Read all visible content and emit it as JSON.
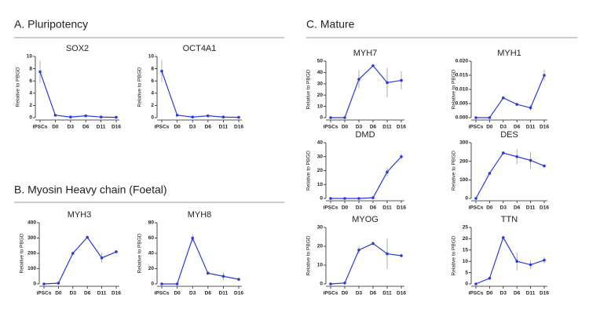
{
  "sections": [
    {
      "title": "A. Pluripotency"
    },
    {
      "title": "B. Myosin Heavy chain (Foetal)"
    },
    {
      "title": "C. Mature"
    }
  ],
  "chart_data": [
    {
      "type": "line",
      "title": "SOX2",
      "y_label": "Relative to PBGD",
      "categories": [
        "iPSCs",
        "D0",
        "D3",
        "D6",
        "D11",
        "D16"
      ],
      "values": [
        7.5,
        0.4,
        0.1,
        0.3,
        0.1,
        0.05
      ],
      "errors": [
        1.8,
        0.1,
        0.05,
        0.1,
        0.05,
        0.02
      ],
      "color": "#2a3bd6",
      "ylim": [
        0,
        10
      ],
      "yticks": [
        0,
        2,
        4,
        6,
        8,
        10
      ]
    },
    {
      "type": "line",
      "title": "OCT4A1",
      "y_label": "Relative to PBGD",
      "categories": [
        "iPSCs",
        "D0",
        "D3",
        "D6",
        "D11",
        "D16"
      ],
      "values": [
        7.6,
        0.4,
        0.1,
        0.3,
        0.1,
        0.05
      ],
      "errors": [
        1.8,
        0.1,
        0.05,
        0.1,
        0.05,
        0.02
      ],
      "color": "#2a3bd6",
      "ylim": [
        0,
        10
      ],
      "yticks": [
        0,
        2,
        4,
        6,
        8,
        10
      ]
    },
    {
      "type": "line",
      "title": "MYH3",
      "y_label": "Relative to PBGD",
      "categories": [
        "iPSCs",
        "D0",
        "D3",
        "D6",
        "D11",
        "D16"
      ],
      "values": [
        0,
        5,
        200,
        305,
        170,
        210
      ],
      "errors": [
        0,
        5,
        10,
        8,
        30,
        10
      ],
      "color": "#2a3bd6",
      "ylim": [
        0,
        400
      ],
      "yticks": [
        0,
        100,
        200,
        300,
        400
      ]
    },
    {
      "type": "line",
      "title": "MYH8",
      "y_label": "Relative to PBGD",
      "categories": [
        "iPSCs",
        "D0",
        "D3",
        "D6",
        "D11",
        "D16"
      ],
      "values": [
        0,
        0,
        60,
        14,
        10,
        6
      ],
      "errors": [
        0,
        0,
        5,
        2,
        5,
        2
      ],
      "color": "#2a3bd6",
      "ylim": [
        0,
        80
      ],
      "yticks": [
        0,
        20,
        40,
        60,
        80
      ]
    },
    {
      "type": "line",
      "title": "MYH7",
      "y_label": "Relative to PBGD",
      "categories": [
        "iPSCs",
        "D0",
        "D3",
        "D6",
        "D11",
        "D16"
      ],
      "values": [
        0,
        0,
        34,
        46,
        31,
        33
      ],
      "errors": [
        0,
        0,
        8,
        1,
        13,
        8
      ],
      "color": "#2a3bd6",
      "ylim": [
        0,
        50
      ],
      "yticks": [
        0,
        10,
        20,
        30,
        40,
        50
      ]
    },
    {
      "type": "line",
      "title": "MYH1",
      "y_label": "Relative to PBGD",
      "categories": [
        "iPSCs",
        "D0",
        "D3",
        "D6",
        "D11",
        "D16"
      ],
      "values": [
        0,
        0,
        0.007,
        0.0047,
        0.0035,
        0.015
      ],
      "errors": [
        0,
        0,
        0.0003,
        0.0005,
        0.001,
        0.002
      ],
      "color": "#2a3bd6",
      "ylim": [
        0,
        0.02
      ],
      "yticks": [
        {
          "value": 0,
          "label": "0.000"
        },
        {
          "value": 0.005,
          "label": "0.005"
        },
        {
          "value": 0.01,
          "label": "0.010"
        },
        {
          "value": 0.015,
          "label": "0.015"
        },
        {
          "value": 0.02,
          "label": "0.020"
        }
      ]
    },
    {
      "type": "line",
      "title": "DMD",
      "y_label": "Relative to PBGD",
      "categories": [
        "iPSCs",
        "D0",
        "D3",
        "D6",
        "D11",
        "D16"
      ],
      "values": [
        0,
        0,
        0,
        0.5,
        19,
        30
      ],
      "errors": [
        0,
        0,
        0,
        0.3,
        3,
        2
      ],
      "color": "#2a3bd6",
      "ylim": [
        0,
        40
      ],
      "yticks": [
        0,
        10,
        20,
        30,
        40
      ]
    },
    {
      "type": "line",
      "title": "DES",
      "y_label": "Relative to PBGD",
      "categories": [
        "iPSCs",
        "D0",
        "D3",
        "D6",
        "D11",
        "D16"
      ],
      "values": [
        0,
        135,
        245,
        225,
        205,
        175
      ],
      "errors": [
        0,
        5,
        10,
        40,
        45,
        5
      ],
      "color": "#2a3bd6",
      "ylim": [
        0,
        300
      ],
      "yticks": [
        0,
        100,
        200,
        300
      ]
    },
    {
      "type": "line",
      "title": "MYOG",
      "y_label": "Relative to PBGD",
      "categories": [
        "iPSCs",
        "D0",
        "D3",
        "D6",
        "D11",
        "D16"
      ],
      "values": [
        0,
        0.5,
        18,
        21.5,
        16,
        15
      ],
      "errors": [
        0,
        0,
        2,
        1,
        8,
        1
      ],
      "color": "#2a3bd6",
      "ylim": [
        0,
        30
      ],
      "yticks": [
        0,
        10,
        20,
        30
      ]
    },
    {
      "type": "line",
      "title": "TTN",
      "y_label": "Relative to PBGD",
      "categories": [
        "iPSCs",
        "D0",
        "D3",
        "D6",
        "D11",
        "D16"
      ],
      "values": [
        0,
        2.5,
        20.5,
        10,
        8.5,
        10.5
      ],
      "errors": [
        0,
        0.5,
        0.5,
        4,
        2,
        1.5
      ],
      "color": "#2a3bd6",
      "ylim": [
        0,
        25
      ],
      "yticks": [
        0,
        5,
        10,
        15,
        20,
        25
      ]
    }
  ]
}
